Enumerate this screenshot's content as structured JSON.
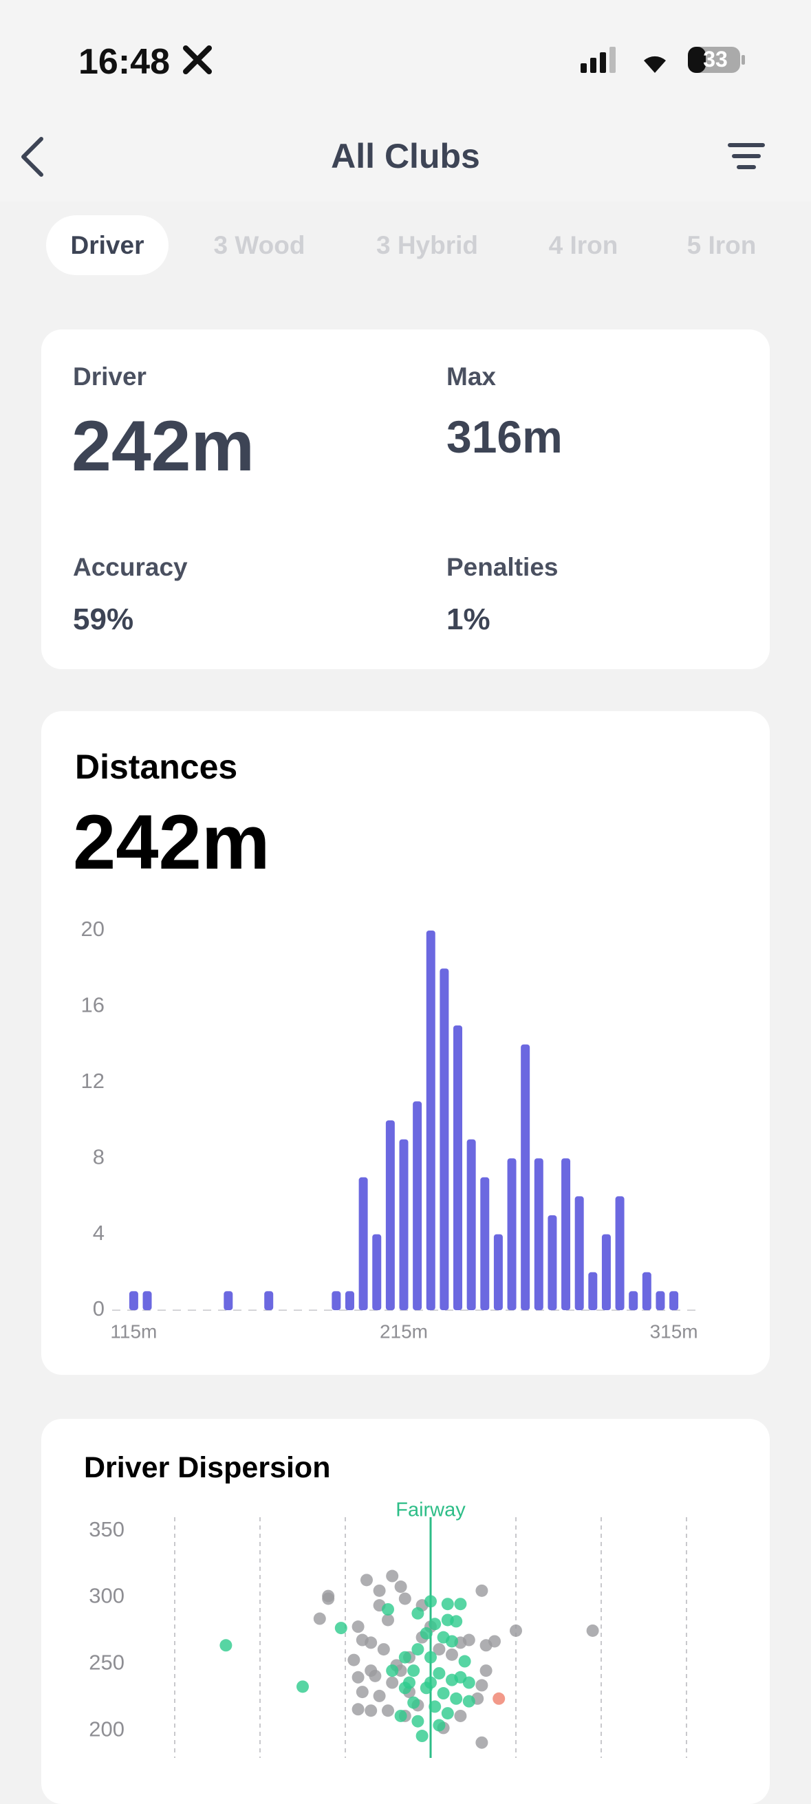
{
  "status_bar": {
    "time": "16:48",
    "battery": "33"
  },
  "nav": {
    "title": "All Clubs"
  },
  "tabs": {
    "items": [
      "Driver",
      "3 Wood",
      "3 Hybrid",
      "4 Iron",
      "5 Iron"
    ],
    "active": 0
  },
  "stats": [
    {
      "label": "Driver",
      "value": "242m"
    },
    {
      "label": "Max",
      "value": "316m"
    },
    {
      "label": "Accuracy",
      "value": "59%"
    },
    {
      "label": "Penalties",
      "value": "1%"
    }
  ],
  "chart_data": [
    {
      "type": "bar",
      "title": "Distances",
      "subtitle": "242m",
      "color": "#6b68e0",
      "x": [
        115,
        120,
        150,
        165,
        190,
        195,
        200,
        205,
        210,
        215,
        220,
        225,
        230,
        235,
        240,
        245,
        250,
        255,
        260,
        265,
        270,
        275,
        280,
        285,
        290,
        295,
        300,
        305,
        310,
        315
      ],
      "values": [
        1,
        1,
        1,
        1,
        1,
        1,
        7,
        4,
        10,
        9,
        11,
        20,
        18,
        15,
        9,
        7,
        4,
        8,
        14,
        8,
        5,
        8,
        6,
        2,
        4,
        6,
        1,
        2,
        1,
        1
      ],
      "xlim": [
        107,
        323
      ],
      "xticks": [
        {
          "value": 115,
          "label": "115m"
        },
        {
          "value": 215,
          "label": "215m"
        },
        {
          "value": 315,
          "label": "315m"
        }
      ],
      "ylim": [
        0,
        20
      ],
      "yticks": [
        0,
        4,
        8,
        12,
        16,
        20
      ]
    },
    {
      "type": "scatter",
      "title": "Driver Dispersion",
      "annotation": "Fairway",
      "annotation_color": "#2dbd87",
      "xlim": [
        -60,
        60
      ],
      "xticks": [
        -60,
        -40,
        -20,
        0,
        20,
        40,
        60
      ],
      "ylim": [
        180,
        355
      ],
      "yticks": [
        350,
        300,
        250,
        200
      ],
      "series": [
        {
          "color": "#9a9a9e",
          "x": [
            -24,
            -24,
            -26,
            -15,
            -9,
            -12,
            -7,
            -6,
            -17,
            -10,
            -16,
            -14,
            -11,
            -18,
            -14,
            -17,
            -13,
            -16,
            -12,
            -9,
            -7,
            -5,
            -2,
            0,
            2,
            5,
            7,
            9,
            12,
            13,
            15,
            20,
            38,
            13,
            12,
            11,
            -10,
            -14,
            -6,
            -3,
            3,
            7,
            12,
            -8,
            -5,
            -17,
            -2,
            -12
          ],
          "values": [
            301,
            299,
            284,
            313,
            316,
            305,
            308,
            299,
            278,
            283,
            268,
            266,
            261,
            253,
            245,
            240,
            241,
            229,
            226,
            236,
            245,
            255,
            270,
            278,
            261,
            257,
            266,
            268,
            305,
            264,
            267,
            275,
            275,
            245,
            234,
            224,
            215,
            215,
            211,
            219,
            202,
            211,
            191,
            249,
            229,
            216,
            294,
            294
          ]
        },
        {
          "color": "#2dcb8c",
          "x": [
            -48,
            -30,
            -21,
            -10,
            -3,
            0,
            4,
            7,
            4,
            6,
            1,
            -1,
            3,
            5,
            -3,
            -6,
            0,
            -9,
            -4,
            2,
            5,
            7,
            9,
            -6,
            -1,
            3,
            6,
            -4,
            1,
            4,
            -7,
            -3,
            2,
            -2,
            9,
            8,
            -5,
            0
          ],
          "values": [
            264,
            233,
            277,
            291,
            288,
            297,
            295,
            295,
            283,
            282,
            280,
            273,
            270,
            267,
            261,
            255,
            255,
            245,
            245,
            243,
            238,
            240,
            236,
            232,
            232,
            228,
            224,
            221,
            218,
            213,
            211,
            207,
            204,
            196,
            222,
            252,
            236,
            236
          ]
        },
        {
          "color": "#ef7f6b",
          "x": [
            16
          ],
          "values": [
            224
          ]
        }
      ]
    }
  ]
}
